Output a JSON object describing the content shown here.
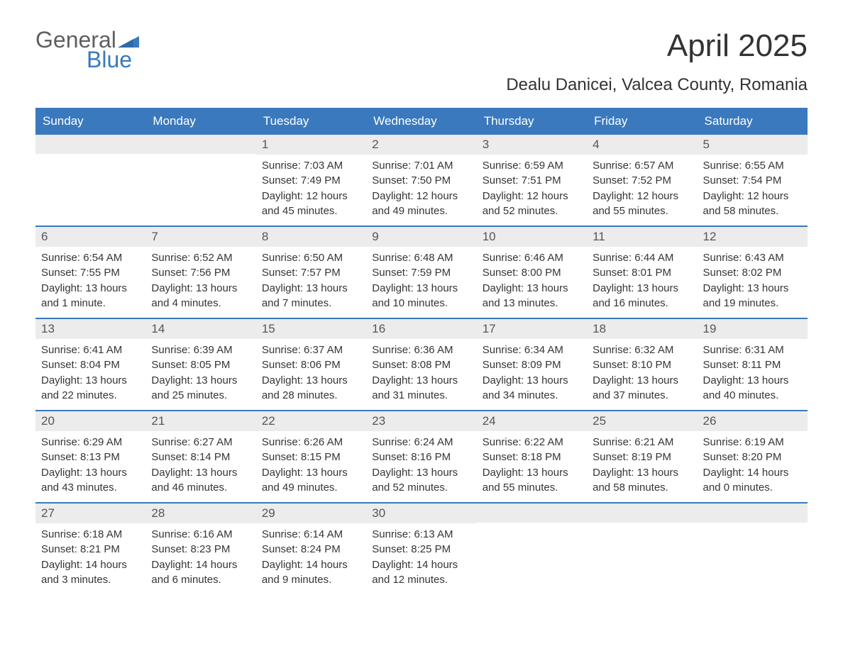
{
  "logo": {
    "word1": "General",
    "word2": "Blue"
  },
  "title": "April 2025",
  "location": "Dealu Danicei, Valcea County, Romania",
  "colors": {
    "header_bg": "#3a79bd",
    "header_text": "#ffffff",
    "daynum_bg": "#ececec",
    "daynum_text": "#555555",
    "body_text": "#353535",
    "rule": "#3a79bd",
    "logo_gray": "#5f5f5f",
    "logo_blue": "#3a79bd",
    "page_bg": "#ffffff"
  },
  "fonts": {
    "title_size_pt": 33,
    "location_size_pt": 18,
    "header_cell_size_pt": 13,
    "daynum_size_pt": 13,
    "body_size_pt": 11
  },
  "day_labels": [
    "Sunday",
    "Monday",
    "Tuesday",
    "Wednesday",
    "Thursday",
    "Friday",
    "Saturday"
  ],
  "weeks": [
    [
      {
        "num": "",
        "sunrise": "",
        "sunset": "",
        "daylight1": "",
        "daylight2": ""
      },
      {
        "num": "",
        "sunrise": "",
        "sunset": "",
        "daylight1": "",
        "daylight2": ""
      },
      {
        "num": "1",
        "sunrise": "Sunrise: 7:03 AM",
        "sunset": "Sunset: 7:49 PM",
        "daylight1": "Daylight: 12 hours",
        "daylight2": "and 45 minutes."
      },
      {
        "num": "2",
        "sunrise": "Sunrise: 7:01 AM",
        "sunset": "Sunset: 7:50 PM",
        "daylight1": "Daylight: 12 hours",
        "daylight2": "and 49 minutes."
      },
      {
        "num": "3",
        "sunrise": "Sunrise: 6:59 AM",
        "sunset": "Sunset: 7:51 PM",
        "daylight1": "Daylight: 12 hours",
        "daylight2": "and 52 minutes."
      },
      {
        "num": "4",
        "sunrise": "Sunrise: 6:57 AM",
        "sunset": "Sunset: 7:52 PM",
        "daylight1": "Daylight: 12 hours",
        "daylight2": "and 55 minutes."
      },
      {
        "num": "5",
        "sunrise": "Sunrise: 6:55 AM",
        "sunset": "Sunset: 7:54 PM",
        "daylight1": "Daylight: 12 hours",
        "daylight2": "and 58 minutes."
      }
    ],
    [
      {
        "num": "6",
        "sunrise": "Sunrise: 6:54 AM",
        "sunset": "Sunset: 7:55 PM",
        "daylight1": "Daylight: 13 hours",
        "daylight2": "and 1 minute."
      },
      {
        "num": "7",
        "sunrise": "Sunrise: 6:52 AM",
        "sunset": "Sunset: 7:56 PM",
        "daylight1": "Daylight: 13 hours",
        "daylight2": "and 4 minutes."
      },
      {
        "num": "8",
        "sunrise": "Sunrise: 6:50 AM",
        "sunset": "Sunset: 7:57 PM",
        "daylight1": "Daylight: 13 hours",
        "daylight2": "and 7 minutes."
      },
      {
        "num": "9",
        "sunrise": "Sunrise: 6:48 AM",
        "sunset": "Sunset: 7:59 PM",
        "daylight1": "Daylight: 13 hours",
        "daylight2": "and 10 minutes."
      },
      {
        "num": "10",
        "sunrise": "Sunrise: 6:46 AM",
        "sunset": "Sunset: 8:00 PM",
        "daylight1": "Daylight: 13 hours",
        "daylight2": "and 13 minutes."
      },
      {
        "num": "11",
        "sunrise": "Sunrise: 6:44 AM",
        "sunset": "Sunset: 8:01 PM",
        "daylight1": "Daylight: 13 hours",
        "daylight2": "and 16 minutes."
      },
      {
        "num": "12",
        "sunrise": "Sunrise: 6:43 AM",
        "sunset": "Sunset: 8:02 PM",
        "daylight1": "Daylight: 13 hours",
        "daylight2": "and 19 minutes."
      }
    ],
    [
      {
        "num": "13",
        "sunrise": "Sunrise: 6:41 AM",
        "sunset": "Sunset: 8:04 PM",
        "daylight1": "Daylight: 13 hours",
        "daylight2": "and 22 minutes."
      },
      {
        "num": "14",
        "sunrise": "Sunrise: 6:39 AM",
        "sunset": "Sunset: 8:05 PM",
        "daylight1": "Daylight: 13 hours",
        "daylight2": "and 25 minutes."
      },
      {
        "num": "15",
        "sunrise": "Sunrise: 6:37 AM",
        "sunset": "Sunset: 8:06 PM",
        "daylight1": "Daylight: 13 hours",
        "daylight2": "and 28 minutes."
      },
      {
        "num": "16",
        "sunrise": "Sunrise: 6:36 AM",
        "sunset": "Sunset: 8:08 PM",
        "daylight1": "Daylight: 13 hours",
        "daylight2": "and 31 minutes."
      },
      {
        "num": "17",
        "sunrise": "Sunrise: 6:34 AM",
        "sunset": "Sunset: 8:09 PM",
        "daylight1": "Daylight: 13 hours",
        "daylight2": "and 34 minutes."
      },
      {
        "num": "18",
        "sunrise": "Sunrise: 6:32 AM",
        "sunset": "Sunset: 8:10 PM",
        "daylight1": "Daylight: 13 hours",
        "daylight2": "and 37 minutes."
      },
      {
        "num": "19",
        "sunrise": "Sunrise: 6:31 AM",
        "sunset": "Sunset: 8:11 PM",
        "daylight1": "Daylight: 13 hours",
        "daylight2": "and 40 minutes."
      }
    ],
    [
      {
        "num": "20",
        "sunrise": "Sunrise: 6:29 AM",
        "sunset": "Sunset: 8:13 PM",
        "daylight1": "Daylight: 13 hours",
        "daylight2": "and 43 minutes."
      },
      {
        "num": "21",
        "sunrise": "Sunrise: 6:27 AM",
        "sunset": "Sunset: 8:14 PM",
        "daylight1": "Daylight: 13 hours",
        "daylight2": "and 46 minutes."
      },
      {
        "num": "22",
        "sunrise": "Sunrise: 6:26 AM",
        "sunset": "Sunset: 8:15 PM",
        "daylight1": "Daylight: 13 hours",
        "daylight2": "and 49 minutes."
      },
      {
        "num": "23",
        "sunrise": "Sunrise: 6:24 AM",
        "sunset": "Sunset: 8:16 PM",
        "daylight1": "Daylight: 13 hours",
        "daylight2": "and 52 minutes."
      },
      {
        "num": "24",
        "sunrise": "Sunrise: 6:22 AM",
        "sunset": "Sunset: 8:18 PM",
        "daylight1": "Daylight: 13 hours",
        "daylight2": "and 55 minutes."
      },
      {
        "num": "25",
        "sunrise": "Sunrise: 6:21 AM",
        "sunset": "Sunset: 8:19 PM",
        "daylight1": "Daylight: 13 hours",
        "daylight2": "and 58 minutes."
      },
      {
        "num": "26",
        "sunrise": "Sunrise: 6:19 AM",
        "sunset": "Sunset: 8:20 PM",
        "daylight1": "Daylight: 14 hours",
        "daylight2": "and 0 minutes."
      }
    ],
    [
      {
        "num": "27",
        "sunrise": "Sunrise: 6:18 AM",
        "sunset": "Sunset: 8:21 PM",
        "daylight1": "Daylight: 14 hours",
        "daylight2": "and 3 minutes."
      },
      {
        "num": "28",
        "sunrise": "Sunrise: 6:16 AM",
        "sunset": "Sunset: 8:23 PM",
        "daylight1": "Daylight: 14 hours",
        "daylight2": "and 6 minutes."
      },
      {
        "num": "29",
        "sunrise": "Sunrise: 6:14 AM",
        "sunset": "Sunset: 8:24 PM",
        "daylight1": "Daylight: 14 hours",
        "daylight2": "and 9 minutes."
      },
      {
        "num": "30",
        "sunrise": "Sunrise: 6:13 AM",
        "sunset": "Sunset: 8:25 PM",
        "daylight1": "Daylight: 14 hours",
        "daylight2": "and 12 minutes."
      },
      {
        "num": "",
        "sunrise": "",
        "sunset": "",
        "daylight1": "",
        "daylight2": ""
      },
      {
        "num": "",
        "sunrise": "",
        "sunset": "",
        "daylight1": "",
        "daylight2": ""
      },
      {
        "num": "",
        "sunrise": "",
        "sunset": "",
        "daylight1": "",
        "daylight2": ""
      }
    ]
  ]
}
